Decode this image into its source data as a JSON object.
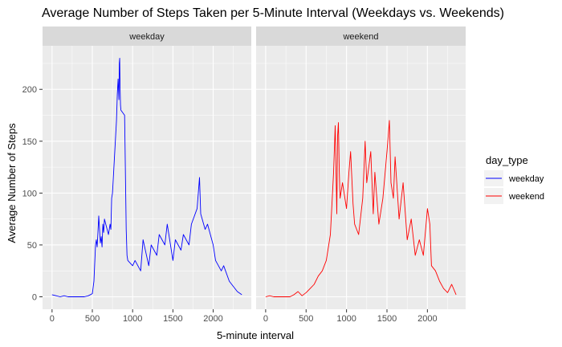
{
  "chart_data": {
    "type": "line",
    "title": "Average Number of Steps Taken per 5-Minute Interval (Weekdays vs. Weekends)",
    "xlabel": "5-minute interval",
    "ylabel": "Average Number of Steps",
    "xlim": [
      -118,
      2473
    ],
    "ylim": [
      -12,
      242
    ],
    "x_ticks": [
      0,
      500,
      1000,
      1500,
      2000
    ],
    "y_ticks": [
      0,
      50,
      100,
      150,
      200
    ],
    "grid": true,
    "legend": {
      "title": "day_type",
      "placement": "right",
      "entries": [
        {
          "label": "weekday",
          "color": "#0000ff"
        },
        {
          "label": "weekend",
          "color": "#ff0000"
        }
      ]
    },
    "panels": [
      {
        "strip": "weekday",
        "color": "#0000ff",
        "x": [
          0,
          50,
          100,
          150,
          200,
          250,
          300,
          350,
          400,
          450,
          500,
          520,
          540,
          550,
          560,
          570,
          580,
          600,
          610,
          620,
          630,
          640,
          650,
          700,
          720,
          730,
          740,
          750,
          800,
          810,
          820,
          830,
          835,
          840,
          845,
          850,
          855,
          900,
          910,
          920,
          930,
          940,
          1000,
          1030,
          1100,
          1130,
          1200,
          1230,
          1300,
          1330,
          1400,
          1430,
          1500,
          1530,
          1600,
          1630,
          1700,
          1730,
          1800,
          1815,
          1830,
          1845,
          1900,
          1930,
          2000,
          2030,
          2100,
          2130,
          2200,
          2230,
          2300,
          2355
        ],
        "values": [
          2,
          1,
          0,
          1,
          0,
          0,
          0,
          0,
          0,
          1,
          3,
          15,
          50,
          55,
          48,
          62,
          78,
          52,
          58,
          48,
          70,
          62,
          75,
          60,
          70,
          65,
          95,
          100,
          170,
          195,
          210,
          190,
          225,
          230,
          200,
          185,
          180,
          175,
          120,
          65,
          40,
          35,
          30,
          35,
          25,
          55,
          30,
          50,
          40,
          60,
          50,
          70,
          35,
          55,
          45,
          60,
          50,
          70,
          85,
          100,
          115,
          80,
          65,
          70,
          50,
          35,
          25,
          30,
          15,
          12,
          5,
          2
        ]
      },
      {
        "strip": "weekend",
        "color": "#ff0000",
        "x": [
          0,
          50,
          100,
          150,
          200,
          250,
          300,
          350,
          400,
          450,
          500,
          550,
          600,
          650,
          700,
          750,
          800,
          820,
          840,
          860,
          880,
          890,
          900,
          910,
          920,
          950,
          1000,
          1030,
          1050,
          1080,
          1100,
          1150,
          1200,
          1230,
          1250,
          1300,
          1330,
          1350,
          1400,
          1450,
          1500,
          1530,
          1550,
          1580,
          1600,
          1650,
          1700,
          1750,
          1800,
          1850,
          1900,
          1950,
          2000,
          2030,
          2050,
          2100,
          2150,
          2200,
          2250,
          2300,
          2355
        ],
        "values": [
          0,
          1,
          0,
          0,
          0,
          0,
          0,
          2,
          5,
          1,
          4,
          8,
          12,
          20,
          25,
          35,
          60,
          90,
          120,
          165,
          80,
          155,
          168,
          120,
          95,
          110,
          85,
          120,
          140,
          90,
          70,
          60,
          95,
          150,
          110,
          140,
          80,
          120,
          70,
          95,
          140,
          170,
          110,
          95,
          135,
          75,
          110,
          55,
          75,
          40,
          55,
          40,
          85,
          70,
          30,
          25,
          15,
          8,
          4,
          12,
          2
        ]
      }
    ]
  }
}
